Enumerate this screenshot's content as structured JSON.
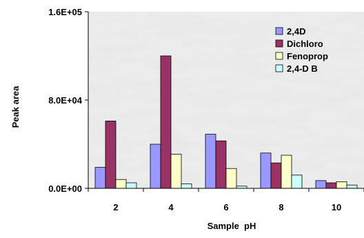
{
  "chart_data": {
    "type": "bar",
    "title": "",
    "xlabel": "Sample  pH",
    "ylabel": "Peak area",
    "categories": [
      "2",
      "4",
      "6",
      "8",
      "10"
    ],
    "ylim": [
      0,
      160000
    ],
    "yticks": [
      0,
      80000,
      160000
    ],
    "ytick_labels": [
      "0.0E+00",
      "8.0E+04",
      "1.6E+05"
    ],
    "grid": false,
    "plot_background": "marble texture (light grey)",
    "legend_position": "top-right",
    "series": [
      {
        "name": "2,4D",
        "color": "#9999ff",
        "values": [
          19000,
          40000,
          49000,
          32000,
          7000
        ]
      },
      {
        "name": "Dichloro",
        "color": "#993366",
        "values": [
          61000,
          120000,
          43000,
          23000,
          5000
        ]
      },
      {
        "name": "Fenoprop",
        "color": "#ffffcc",
        "values": [
          8000,
          31000,
          18000,
          30000,
          6000
        ]
      },
      {
        "name": "2,4-D B",
        "color": "#ccffff",
        "values": [
          5000,
          4000,
          2000,
          12000,
          3000
        ]
      }
    ]
  }
}
